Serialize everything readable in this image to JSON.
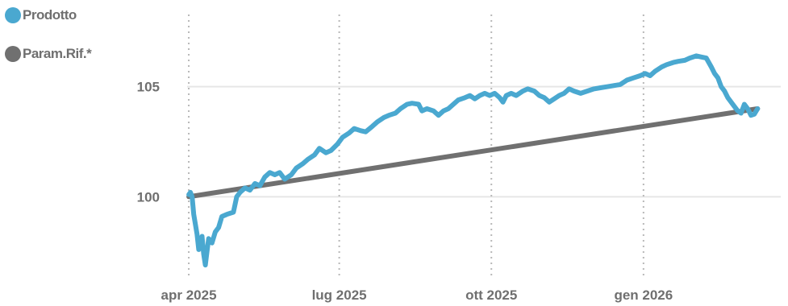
{
  "chart_data": {
    "type": "line",
    "xlabel": "",
    "ylabel": "",
    "xlim": [
      "2025-03-31",
      "2026-03-25"
    ],
    "ylim": [
      96.5,
      108.5
    ],
    "y_ticks": [
      100,
      105
    ],
    "x_ticks": [
      {
        "date": "2025-04-01",
        "label": "apr 2025"
      },
      {
        "date": "2025-07-01",
        "label": "lug 2025"
      },
      {
        "date": "2025-10-01",
        "label": "ott 2025"
      },
      {
        "date": "2026-01-01",
        "label": "gen 2026"
      }
    ],
    "grid": {
      "horizontal": "solid",
      "vertical": "dotted"
    },
    "legend_position": "top-left",
    "series": [
      {
        "name": "Prodotto",
        "color": "#4aa8d0",
        "points": [
          [
            "2025-04-01",
            100.1
          ],
          [
            "2025-04-02",
            100.2
          ],
          [
            "2025-04-03",
            100.0
          ],
          [
            "2025-04-04",
            99.2
          ],
          [
            "2025-04-06",
            98.3
          ],
          [
            "2025-04-07",
            97.6
          ],
          [
            "2025-04-08",
            97.8
          ],
          [
            "2025-04-09",
            98.2
          ],
          [
            "2025-04-10",
            97.4
          ],
          [
            "2025-04-11",
            96.9
          ],
          [
            "2025-04-12",
            97.5
          ],
          [
            "2025-04-13",
            98.1
          ],
          [
            "2025-04-15",
            97.9
          ],
          [
            "2025-04-17",
            98.4
          ],
          [
            "2025-04-19",
            98.6
          ],
          [
            "2025-04-21",
            99.1
          ],
          [
            "2025-04-24",
            99.2
          ],
          [
            "2025-04-28",
            99.3
          ],
          [
            "2025-04-30",
            100.0
          ],
          [
            "2025-05-02",
            100.2
          ],
          [
            "2025-05-05",
            100.4
          ],
          [
            "2025-05-08",
            100.3
          ],
          [
            "2025-05-11",
            100.6
          ],
          [
            "2025-05-14",
            100.5
          ],
          [
            "2025-05-17",
            100.9
          ],
          [
            "2025-05-20",
            101.1
          ],
          [
            "2025-05-23",
            101.0
          ],
          [
            "2025-05-26",
            101.1
          ],
          [
            "2025-05-29",
            100.8
          ],
          [
            "2025-06-02",
            101.0
          ],
          [
            "2025-06-05",
            101.3
          ],
          [
            "2025-06-09",
            101.5
          ],
          [
            "2025-06-12",
            101.7
          ],
          [
            "2025-06-16",
            101.9
          ],
          [
            "2025-06-19",
            102.2
          ],
          [
            "2025-06-23",
            102.0
          ],
          [
            "2025-06-26",
            102.1
          ],
          [
            "2025-06-30",
            102.4
          ],
          [
            "2025-07-03",
            102.7
          ],
          [
            "2025-07-07",
            102.9
          ],
          [
            "2025-07-10",
            103.1
          ],
          [
            "2025-07-14",
            103.0
          ],
          [
            "2025-07-17",
            102.95
          ],
          [
            "2025-07-21",
            103.2
          ],
          [
            "2025-07-24",
            103.4
          ],
          [
            "2025-07-28",
            103.6
          ],
          [
            "2025-07-31",
            103.7
          ],
          [
            "2025-08-04",
            103.8
          ],
          [
            "2025-08-07",
            104.0
          ],
          [
            "2025-08-11",
            104.2
          ],
          [
            "2025-08-14",
            104.25
          ],
          [
            "2025-08-18",
            104.2
          ],
          [
            "2025-08-20",
            103.9
          ],
          [
            "2025-08-23",
            104.0
          ],
          [
            "2025-08-27",
            103.9
          ],
          [
            "2025-08-30",
            103.7
          ],
          [
            "2025-09-02",
            103.9
          ],
          [
            "2025-09-05",
            104.0
          ],
          [
            "2025-09-08",
            104.2
          ],
          [
            "2025-09-11",
            104.4
          ],
          [
            "2025-09-15",
            104.5
          ],
          [
            "2025-09-18",
            104.6
          ],
          [
            "2025-09-21",
            104.45
          ],
          [
            "2025-09-24",
            104.6
          ],
          [
            "2025-09-27",
            104.7
          ],
          [
            "2025-09-30",
            104.6
          ],
          [
            "2025-10-03",
            104.7
          ],
          [
            "2025-10-06",
            104.5
          ],
          [
            "2025-10-08",
            104.3
          ],
          [
            "2025-10-10",
            104.6
          ],
          [
            "2025-10-13",
            104.7
          ],
          [
            "2025-10-16",
            104.6
          ],
          [
            "2025-10-20",
            104.8
          ],
          [
            "2025-10-23",
            104.9
          ],
          [
            "2025-10-27",
            104.8
          ],
          [
            "2025-10-30",
            104.6
          ],
          [
            "2025-11-02",
            104.5
          ],
          [
            "2025-11-05",
            104.3
          ],
          [
            "2025-11-08",
            104.45
          ],
          [
            "2025-11-11",
            104.6
          ],
          [
            "2025-11-14",
            104.7
          ],
          [
            "2025-11-17",
            104.9
          ],
          [
            "2025-11-20",
            104.8
          ],
          [
            "2025-11-24",
            104.7
          ],
          [
            "2025-11-28",
            104.8
          ],
          [
            "2025-12-02",
            104.9
          ],
          [
            "2025-12-06",
            104.95
          ],
          [
            "2025-12-10",
            105.0
          ],
          [
            "2025-12-14",
            105.05
          ],
          [
            "2025-12-18",
            105.1
          ],
          [
            "2025-12-22",
            105.3
          ],
          [
            "2025-12-26",
            105.4
          ],
          [
            "2025-12-30",
            105.5
          ],
          [
            "2026-01-02",
            105.6
          ],
          [
            "2026-01-05",
            105.5
          ],
          [
            "2026-01-08",
            105.7
          ],
          [
            "2026-01-12",
            105.9
          ],
          [
            "2026-01-15",
            106.0
          ],
          [
            "2026-01-19",
            106.1
          ],
          [
            "2026-01-22",
            106.15
          ],
          [
            "2026-01-26",
            106.2
          ],
          [
            "2026-01-29",
            106.3
          ],
          [
            "2026-02-02",
            106.4
          ],
          [
            "2026-02-05",
            106.35
          ],
          [
            "2026-02-08",
            106.3
          ],
          [
            "2026-02-11",
            105.9
          ],
          [
            "2026-02-13",
            105.6
          ],
          [
            "2026-02-15",
            105.4
          ],
          [
            "2026-02-17",
            105.0
          ],
          [
            "2026-02-19",
            104.8
          ],
          [
            "2026-02-21",
            104.5
          ],
          [
            "2026-02-23",
            104.3
          ],
          [
            "2026-02-25",
            104.1
          ],
          [
            "2026-02-27",
            103.9
          ],
          [
            "2026-03-01",
            103.8
          ],
          [
            "2026-03-03",
            104.2
          ],
          [
            "2026-03-05",
            104.0
          ],
          [
            "2026-03-07",
            103.7
          ],
          [
            "2026-03-09",
            103.75
          ],
          [
            "2026-03-11",
            104.0
          ]
        ]
      },
      {
        "name": "Param.Rif.*",
        "color": "#707070",
        "points": [
          [
            "2025-04-01",
            100.0
          ],
          [
            "2026-03-11",
            104.0
          ]
        ]
      }
    ]
  }
}
